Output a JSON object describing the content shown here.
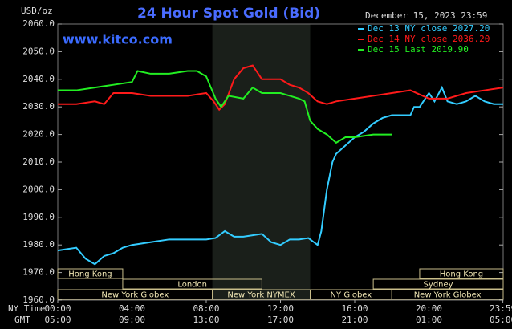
{
  "chart_data": {
    "type": "line",
    "title": "24 Hour Spot Gold (Bid)",
    "watermark": "www.kitco.com",
    "y_label": "USD/oz",
    "timestamp": "December 15, 2023 23:59",
    "x_label": "NY Time",
    "x2_label": "GMT",
    "xlim": [
      0,
      24
    ],
    "xticks": [
      {
        "value": 0,
        "label": "00:00"
      },
      {
        "value": 4,
        "label": "04:00"
      },
      {
        "value": 8,
        "label": "08:00"
      },
      {
        "value": 12,
        "label": "12:00"
      },
      {
        "value": 16,
        "label": "16:00"
      },
      {
        "value": 20,
        "label": "20:00"
      },
      {
        "value": 23.983,
        "label": "23:59"
      }
    ],
    "x2ticks": [
      "05:00",
      "09:00",
      "13:00",
      "17:00",
      "21:00",
      "01:00",
      "05:00"
    ],
    "ylim": [
      1960,
      2060
    ],
    "yticks": [
      {
        "value": 1960,
        "label": "1960.0"
      },
      {
        "value": 1970,
        "label": "1970.0"
      },
      {
        "value": 1980,
        "label": "1980.0"
      },
      {
        "value": 1990,
        "label": "1990.0"
      },
      {
        "value": 2000,
        "label": "2000.0"
      },
      {
        "value": 2010,
        "label": "2010.0"
      },
      {
        "value": 2020,
        "label": "2020.0"
      },
      {
        "value": 2030,
        "label": "2030.0"
      },
      {
        "value": 2040,
        "label": "2040.0"
      },
      {
        "value": 2050,
        "label": "2050.0"
      },
      {
        "value": 2060,
        "label": "2060.0"
      }
    ],
    "shaded_range": [
      8.33,
      13.6
    ],
    "session_rows": [
      [
        {
          "name": "Hong Kong",
          "start": 0,
          "end": 3.5
        },
        {
          "name": "Hong Kong",
          "start": 19.5,
          "end": 24
        }
      ],
      [
        {
          "name": "London",
          "start": 3.5,
          "end": 11
        },
        {
          "name": "Sydney",
          "start": 17,
          "end": 24
        }
      ],
      [
        {
          "name": "New York Globex",
          "start": 0,
          "end": 8.33
        },
        {
          "name": "New York NYMEX",
          "start": 8.33,
          "end": 13.6
        },
        {
          "name": "NY Globex",
          "start": 13.6,
          "end": 18
        },
        {
          "name": "New York Globex",
          "start": 18,
          "end": 24
        }
      ]
    ],
    "series": [
      {
        "name": "Dec 13 NY close 2027.20",
        "color": "#33ccff",
        "x": [
          0,
          0.5,
          1,
          1.5,
          2,
          2.5,
          3,
          3.5,
          4,
          5,
          6,
          7,
          8,
          8.5,
          9,
          9.5,
          10,
          11,
          11.5,
          12,
          12.5,
          13,
          13.5,
          13.8,
          14,
          14.2,
          14.5,
          14.8,
          15,
          15.5,
          16,
          16.5,
          17,
          17.5,
          18,
          18.5,
          19,
          19.2,
          19.5,
          20,
          20.3,
          20.7,
          21,
          21.5,
          22,
          22.5,
          23,
          23.5,
          24
        ],
        "values": [
          1978,
          1978.5,
          1979,
          1975,
          1973,
          1976,
          1977,
          1979,
          1980,
          1981,
          1982,
          1982,
          1982,
          1982.5,
          1985,
          1983,
          1983,
          1984,
          1981,
          1980,
          1982,
          1982,
          1982.5,
          1981,
          1980,
          1985,
          2000,
          2010,
          2013,
          2016,
          2019,
          2021,
          2024,
          2026,
          2027,
          2027,
          2027,
          2030,
          2030,
          2035,
          2032,
          2037,
          2032,
          2031,
          2032,
          2034,
          2032,
          2031,
          2031
        ]
      },
      {
        "name": "Dec 14 NY close 2036.20",
        "color": "#ff1a1a",
        "x": [
          0,
          1,
          2,
          2.5,
          3,
          4,
          5,
          6,
          7,
          8,
          8.4,
          8.7,
          9,
          9.5,
          10,
          10.5,
          11,
          11.5,
          12,
          12.5,
          13,
          13.5,
          14,
          14.5,
          15,
          16,
          17,
          18,
          19,
          20,
          21,
          22,
          23,
          24
        ],
        "values": [
          2031,
          2031,
          2032,
          2031,
          2035,
          2035,
          2034,
          2034,
          2034,
          2035,
          2032,
          2029,
          2031,
          2040,
          2044,
          2045,
          2040,
          2040,
          2040,
          2038,
          2037,
          2035,
          2032,
          2031,
          2032,
          2033,
          2034,
          2035,
          2036,
          2033,
          2033,
          2035,
          2036,
          2037
        ]
      },
      {
        "name": "Dec 15 Last 2019.90",
        "color": "#22ee22",
        "x": [
          0,
          1,
          2,
          3,
          4,
          4.3,
          5,
          6,
          7,
          7.5,
          8,
          8.5,
          8.8,
          9.2,
          10,
          10.5,
          11,
          12,
          12.5,
          13,
          13.3,
          13.6,
          14,
          14.5,
          15,
          15.5,
          16,
          17,
          18
        ],
        "values": [
          2036,
          2036,
          2037,
          2038,
          2039,
          2043,
          2042,
          2042,
          2043,
          2043,
          2041,
          2033,
          2030,
          2034,
          2033,
          2037,
          2035,
          2035,
          2034,
          2033,
          2032,
          2025,
          2022,
          2020,
          2017,
          2019,
          2019,
          2020,
          2020
        ]
      }
    ]
  }
}
